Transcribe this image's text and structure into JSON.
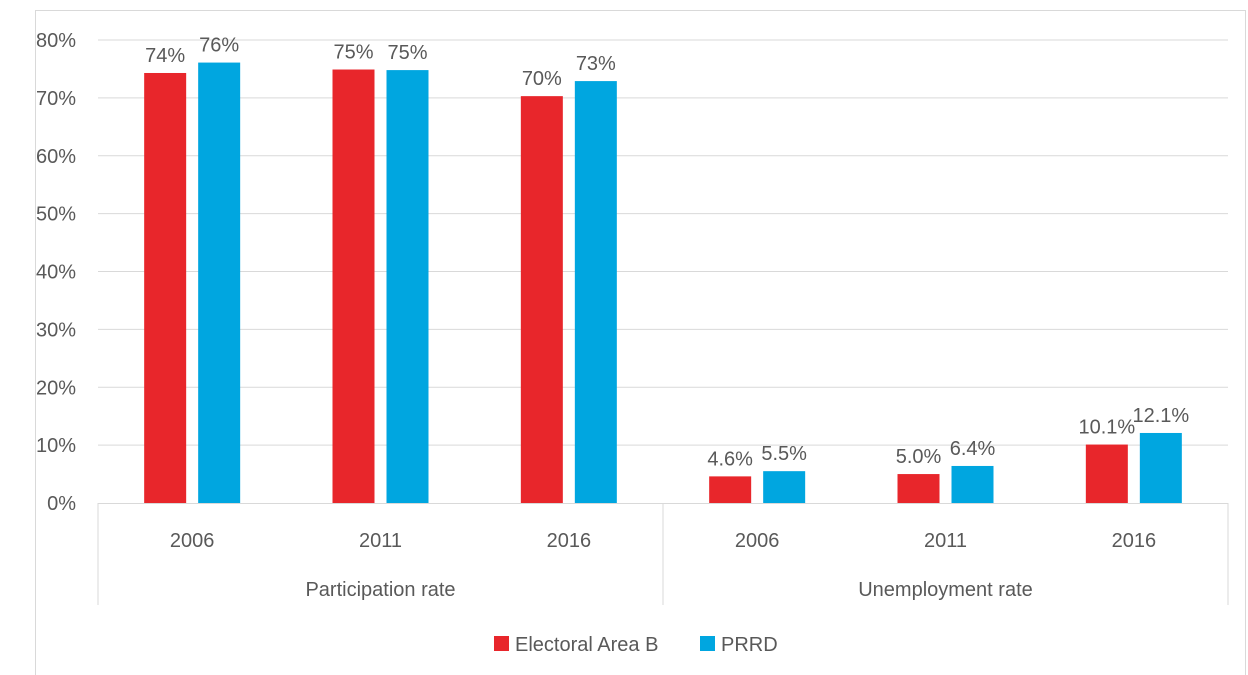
{
  "chart_data": {
    "type": "bar",
    "groups": [
      {
        "label": "Participation rate",
        "categories": [
          "2006",
          "2011",
          "2016"
        ]
      },
      {
        "label": "Unemployment rate",
        "categories": [
          "2006",
          "2011",
          "2016"
        ]
      }
    ],
    "categories": [
      "2006",
      "2011",
      "2016",
      "2006",
      "2011",
      "2016"
    ],
    "series": [
      {
        "name": "Electoral Area B",
        "color": "#E8262B",
        "values": [
          74.3,
          74.9,
          70.3,
          4.6,
          5.0,
          10.1
        ],
        "labels": [
          "74%",
          "75%",
          "70%",
          "4.6%",
          "5.0%",
          "10.1%"
        ]
      },
      {
        "name": "PRRD",
        "color": "#00A6E0",
        "values": [
          76.1,
          74.8,
          72.9,
          5.5,
          6.4,
          12.1
        ],
        "labels": [
          "76%",
          "75%",
          "73%",
          "5.5%",
          "6.4%",
          "12.1%"
        ]
      }
    ],
    "ylim": [
      0,
      80
    ],
    "yticks": [
      0,
      10,
      20,
      30,
      40,
      50,
      60,
      70,
      80
    ],
    "ytick_labels": [
      "0%",
      "10%",
      "20%",
      "30%",
      "40%",
      "50%",
      "60%",
      "70%",
      "80%"
    ],
    "grid": true,
    "legend_position": "bottom-center",
    "title": "",
    "xlabel": "",
    "ylabel": ""
  }
}
